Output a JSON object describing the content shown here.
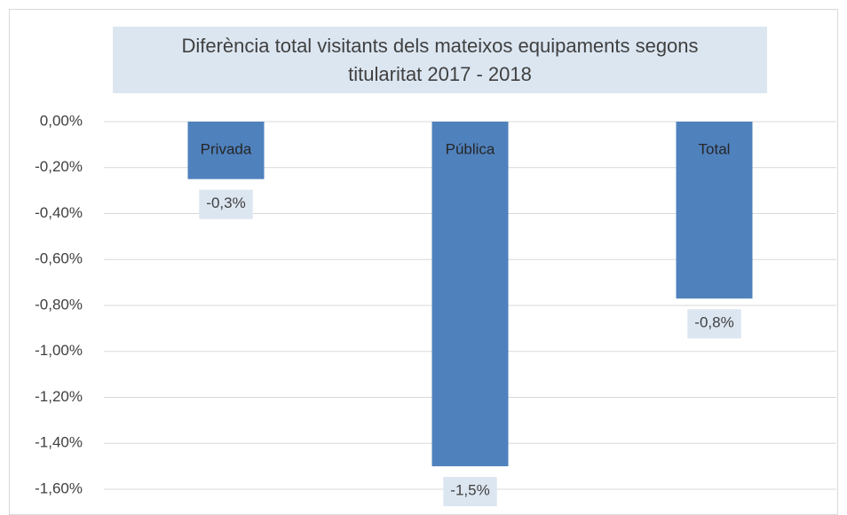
{
  "chart_data": {
    "type": "bar",
    "title": "Diferència total visitants dels mateixos equipaments segons titularitat 2017 - 2018",
    "categories": [
      "Privada",
      "Pública",
      "Total"
    ],
    "values": [
      -0.25,
      -1.5,
      -0.77
    ],
    "value_labels": [
      "-0,3%",
      "-1,5%",
      "-0,8%"
    ],
    "color": "#4f81bd",
    "ylim": [
      -1.6,
      0
    ],
    "yticks": [
      {
        "value": 0,
        "label": "0,00%"
      },
      {
        "value": -0.2,
        "label": "-0,20%"
      },
      {
        "value": -0.4,
        "label": "-0,40%"
      },
      {
        "value": -0.6,
        "label": "-0,60%"
      },
      {
        "value": -0.8,
        "label": "-0,80%"
      },
      {
        "value": -1.0,
        "label": "-1,00%"
      },
      {
        "value": -1.2,
        "label": "-1,20%"
      },
      {
        "value": -1.4,
        "label": "-1,40%"
      },
      {
        "value": -1.6,
        "label": "-1,60%"
      }
    ],
    "grid": true
  }
}
